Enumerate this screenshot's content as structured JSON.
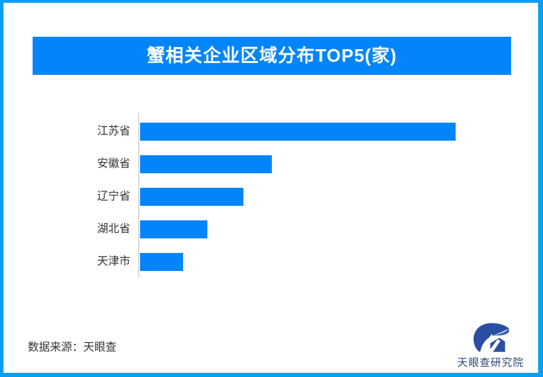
{
  "frame": {
    "border_color": "#0a9df7",
    "background": "#ffffff"
  },
  "header": {
    "title": "蟹相关企业区域分布TOP5(家)",
    "bg_color": "#0385fa",
    "text_color": "#ffffff"
  },
  "chart_data": {
    "type": "bar",
    "orientation": "horizontal",
    "title": "蟹相关企业区域分布TOP5(家)",
    "categories": [
      "江苏省",
      "安徽省",
      "辽宁省",
      "湖北省",
      "天津市"
    ],
    "values_pct_of_max": [
      100,
      41.8,
      32.7,
      21.3,
      13.6
    ],
    "value_labels_shown": false,
    "xlabel": "",
    "ylabel": "",
    "grid": false,
    "legend": false,
    "bar_color": "#0385fa",
    "axis_line_color": "#dcdcdc",
    "label_color": "#333333"
  },
  "footer": {
    "source_text": "数据来源：天眼查"
  },
  "logo": {
    "text": "天眼查研究院",
    "color": "#2a4fa2"
  }
}
